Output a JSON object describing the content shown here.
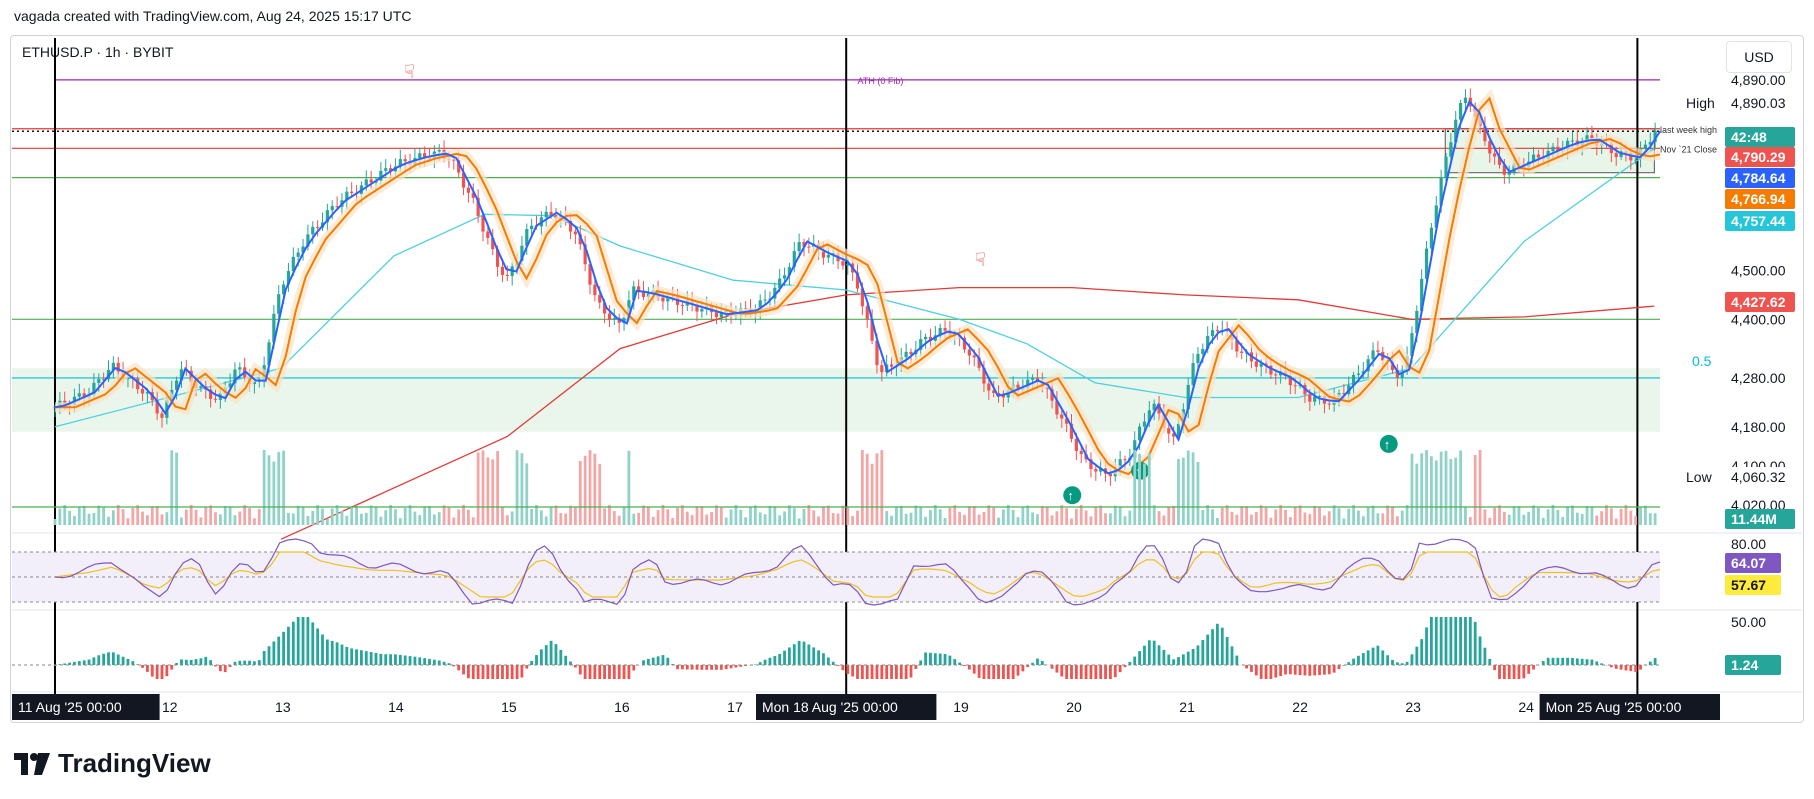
{
  "header": {
    "attribution": "vagada created with TradingView.com, Aug 24, 2025 15:17 UTC",
    "symbol": "ETHUSD.P · 1h · BYBIT",
    "currency": "USD",
    "brand": "TradingView"
  },
  "chart_data": {
    "type": "line",
    "title": "ETHUSD.P · 1h · BYBIT",
    "ylim": [
      4020,
      4900
    ],
    "x_range_days": [
      0,
      14.2
    ],
    "x_ticks": [
      {
        "label": "11 Aug '25   00:00",
        "day": 0,
        "boxed": true
      },
      {
        "label": "12",
        "day": 1
      },
      {
        "label": "13",
        "day": 2
      },
      {
        "label": "14",
        "day": 3
      },
      {
        "label": "15",
        "day": 4
      },
      {
        "label": "16",
        "day": 5
      },
      {
        "label": "17",
        "day": 6
      },
      {
        "label": "Mon 18 Aug '25   00:00",
        "day": 7,
        "boxed": true
      },
      {
        "label": "19",
        "day": 8
      },
      {
        "label": "20",
        "day": 9
      },
      {
        "label": "21",
        "day": 10
      },
      {
        "label": "22",
        "day": 11
      },
      {
        "label": "23",
        "day": 12
      },
      {
        "label": "24",
        "day": 13
      },
      {
        "label": "Mon 25 Aug '25   00:00",
        "day": 14,
        "boxed": true
      }
    ],
    "y_ticks": [
      "4,890.00",
      "4,500.00",
      "4,400.00",
      "4,280.00",
      "4,180.00",
      "4,100.00",
      "4,020.00"
    ],
    "price_series": [
      {
        "day": 0.0,
        "price": 4220
      },
      {
        "day": 0.3,
        "price": 4250
      },
      {
        "day": 0.5,
        "price": 4305
      },
      {
        "day": 0.8,
        "price": 4250
      },
      {
        "day": 0.95,
        "price": 4200
      },
      {
        "day": 1.1,
        "price": 4300
      },
      {
        "day": 1.3,
        "price": 4255
      },
      {
        "day": 1.45,
        "price": 4235
      },
      {
        "day": 1.6,
        "price": 4300
      },
      {
        "day": 1.8,
        "price": 4260
      },
      {
        "day": 2.0,
        "price": 4470
      },
      {
        "day": 2.2,
        "price": 4560
      },
      {
        "day": 2.5,
        "price": 4640
      },
      {
        "day": 2.7,
        "price": 4670
      },
      {
        "day": 3.0,
        "price": 4715
      },
      {
        "day": 3.2,
        "price": 4730
      },
      {
        "day": 3.4,
        "price": 4740
      },
      {
        "day": 3.5,
        "price": 4730
      },
      {
        "day": 3.7,
        "price": 4640
      },
      {
        "day": 3.9,
        "price": 4520
      },
      {
        "day": 4.0,
        "price": 4480
      },
      {
        "day": 4.2,
        "price": 4590
      },
      {
        "day": 4.4,
        "price": 4620
      },
      {
        "day": 4.6,
        "price": 4580
      },
      {
        "day": 4.8,
        "price": 4430
      },
      {
        "day": 5.0,
        "price": 4385
      },
      {
        "day": 5.1,
        "price": 4460
      },
      {
        "day": 5.3,
        "price": 4450
      },
      {
        "day": 5.6,
        "price": 4430
      },
      {
        "day": 5.9,
        "price": 4410
      },
      {
        "day": 6.2,
        "price": 4420
      },
      {
        "day": 6.4,
        "price": 4470
      },
      {
        "day": 6.6,
        "price": 4560
      },
      {
        "day": 6.8,
        "price": 4535
      },
      {
        "day": 7.0,
        "price": 4515
      },
      {
        "day": 7.1,
        "price": 4470
      },
      {
        "day": 7.3,
        "price": 4290
      },
      {
        "day": 7.5,
        "price": 4320
      },
      {
        "day": 7.7,
        "price": 4360
      },
      {
        "day": 7.9,
        "price": 4380
      },
      {
        "day": 8.1,
        "price": 4330
      },
      {
        "day": 8.3,
        "price": 4240
      },
      {
        "day": 8.5,
        "price": 4260
      },
      {
        "day": 8.7,
        "price": 4280
      },
      {
        "day": 8.9,
        "price": 4200
      },
      {
        "day": 9.1,
        "price": 4110
      },
      {
        "day": 9.3,
        "price": 4080
      },
      {
        "day": 9.5,
        "price": 4120
      },
      {
        "day": 9.7,
        "price": 4230
      },
      {
        "day": 9.9,
        "price": 4150
      },
      {
        "day": 10.1,
        "price": 4330
      },
      {
        "day": 10.3,
        "price": 4390
      },
      {
        "day": 10.5,
        "price": 4330
      },
      {
        "day": 10.7,
        "price": 4300
      },
      {
        "day": 10.9,
        "price": 4280
      },
      {
        "day": 11.1,
        "price": 4240
      },
      {
        "day": 11.3,
        "price": 4230
      },
      {
        "day": 11.5,
        "price": 4280
      },
      {
        "day": 11.7,
        "price": 4340
      },
      {
        "day": 11.85,
        "price": 4285
      },
      {
        "day": 11.95,
        "price": 4300
      },
      {
        "day": 12.2,
        "price": 4620
      },
      {
        "day": 12.4,
        "price": 4820
      },
      {
        "day": 12.5,
        "price": 4860
      },
      {
        "day": 12.6,
        "price": 4790
      },
      {
        "day": 12.8,
        "price": 4700
      },
      {
        "day": 13.0,
        "price": 4720
      },
      {
        "day": 13.2,
        "price": 4740
      },
      {
        "day": 13.4,
        "price": 4760
      },
      {
        "day": 13.6,
        "price": 4770
      },
      {
        "day": 13.8,
        "price": 4740
      },
      {
        "day": 14.0,
        "price": 4730
      },
      {
        "day": 14.15,
        "price": 4785
      }
    ],
    "sma_series": [
      {
        "day": 0.0,
        "price": 4180
      },
      {
        "day": 1.0,
        "price": 4240
      },
      {
        "day": 2.0,
        "price": 4300
      },
      {
        "day": 3.0,
        "price": 4530
      },
      {
        "day": 3.8,
        "price": 4615
      },
      {
        "day": 4.4,
        "price": 4612
      },
      {
        "day": 5.0,
        "price": 4550
      },
      {
        "day": 6.0,
        "price": 4480
      },
      {
        "day": 7.0,
        "price": 4460
      },
      {
        "day": 8.0,
        "price": 4400
      },
      {
        "day": 8.6,
        "price": 4350
      },
      {
        "day": 9.2,
        "price": 4270
      },
      {
        "day": 10.0,
        "price": 4240
      },
      {
        "day": 11.0,
        "price": 4240
      },
      {
        "day": 12.0,
        "price": 4300
      },
      {
        "day": 13.0,
        "price": 4560
      },
      {
        "day": 14.15,
        "price": 4750
      }
    ],
    "ma200_series": [
      {
        "day": 2.0,
        "price": 3950
      },
      {
        "day": 4.0,
        "price": 4160
      },
      {
        "day": 5.0,
        "price": 4340
      },
      {
        "day": 6.0,
        "price": 4410
      },
      {
        "day": 7.0,
        "price": 4450
      },
      {
        "day": 8.0,
        "price": 4465
      },
      {
        "day": 9.0,
        "price": 4465
      },
      {
        "day": 10.0,
        "price": 4450
      },
      {
        "day": 11.0,
        "price": 4440
      },
      {
        "day": 12.0,
        "price": 4400
      },
      {
        "day": 13.0,
        "price": 4405
      },
      {
        "day": 14.15,
        "price": 4427
      }
    ],
    "horizontal_levels": [
      {
        "label": "ATH (0 Fib)",
        "price": 4890,
        "color": "#9c27b0"
      },
      {
        "label": "last week high",
        "price": 4790,
        "color": "#e53935"
      },
      {
        "label": "Nov `21 Close",
        "price": 4750,
        "color": "#e53935"
      },
      {
        "label": "0.5",
        "price": 4280,
        "color": "#00bcd4"
      },
      {
        "label": "",
        "price": 4400,
        "color": "#4caf50"
      },
      {
        "label": "",
        "price": 4690,
        "color": "#4caf50"
      }
    ],
    "price_labels": [
      {
        "label": "High",
        "value": "4,890.03",
        "bg": "#ffffff",
        "fg": "#131722"
      },
      {
        "label": "",
        "value": "42:48",
        "bg": "#26a69a",
        "fg": "#ffffff"
      },
      {
        "label": "",
        "value": "4,790.29",
        "bg": "#ef5350",
        "fg": "#ffffff"
      },
      {
        "label": "",
        "value": "4,784.64",
        "bg": "#2962ff",
        "fg": "#ffffff"
      },
      {
        "label": "",
        "value": "4,766.94",
        "bg": "#f57c00",
        "fg": "#ffffff"
      },
      {
        "label": "",
        "value": "4,757.44",
        "bg": "#26c6da",
        "fg": "#ffffff"
      },
      {
        "label": "",
        "value": "4,427.62",
        "bg": "#ef5350",
        "fg": "#ffffff"
      },
      {
        "label": "Low",
        "value": "4,060.32",
        "bg": "#ffffff",
        "fg": "#131722"
      }
    ],
    "volume_label": "11.44M",
    "rsi": {
      "scale_top": "80.00",
      "value": "64.07",
      "signal": "57.67"
    },
    "macd": {
      "scale_top": "50.00",
      "value": "1.24"
    }
  },
  "colors": {
    "up": "#26a69a",
    "down": "#ef5350",
    "grid": "#f0f3fa"
  }
}
